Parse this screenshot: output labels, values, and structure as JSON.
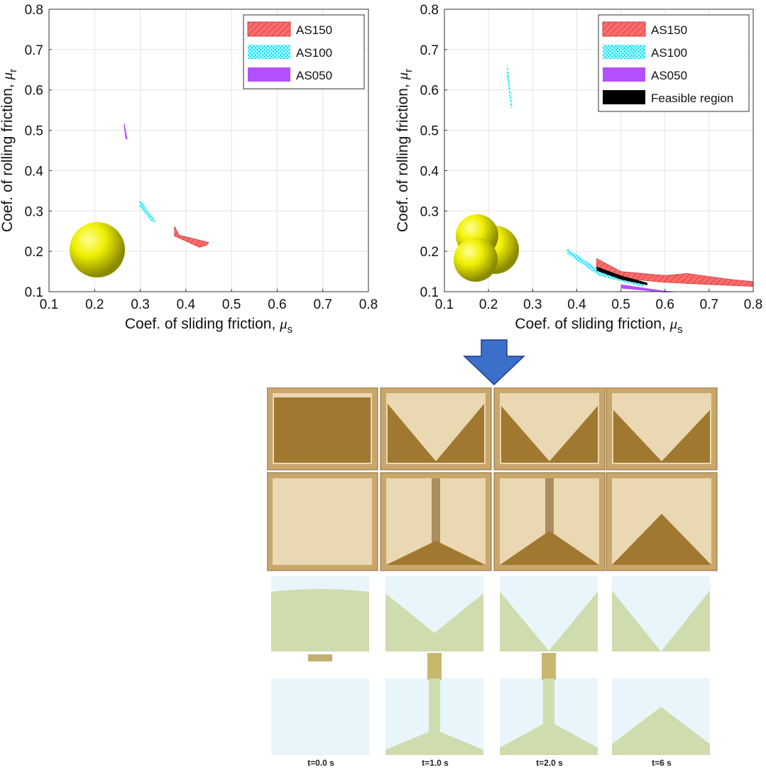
{
  "chart_data": [
    {
      "type": "area",
      "title": "",
      "xlabel": "Coef. of sliding friction, ",
      "xlabel_symbol": "μ",
      "xlabel_sub": "s",
      "ylabel": "Coef. of rolling friction, ",
      "ylabel_symbol": "μ",
      "ylabel_sub": "r",
      "xlim": [
        0.1,
        0.8
      ],
      "ylim": [
        0.1,
        0.8
      ],
      "xticks": [
        "0.1",
        "0.2",
        "0.3",
        "0.4",
        "0.5",
        "0.6",
        "0.7",
        "0.8"
      ],
      "yticks": [
        "0.1",
        "0.2",
        "0.3",
        "0.4",
        "0.5",
        "0.6",
        "0.7",
        "0.8"
      ],
      "grid": true,
      "legend_position": "top-right",
      "particle_shape": "single sphere",
      "series": [
        {
          "name": "AS150",
          "color": "#ff6b6b",
          "hatch": "diagonal",
          "region": [
            [
              0.375,
              0.262
            ],
            [
              0.385,
              0.24
            ],
            [
              0.45,
              0.222
            ],
            [
              0.445,
              0.215
            ],
            [
              0.43,
              0.21
            ],
            [
              0.375,
              0.238
            ]
          ]
        },
        {
          "name": "AS100",
          "color": "#00e5ff",
          "hatch": "cross",
          "region": [
            [
              0.298,
              0.33
            ],
            [
              0.335,
              0.272
            ],
            [
              0.325,
              0.274
            ],
            [
              0.298,
              0.31
            ]
          ]
        },
        {
          "name": "AS050",
          "color": "#b44fff",
          "hatch": "none",
          "region": [
            [
              0.265,
              0.52
            ],
            [
              0.272,
              0.478
            ],
            [
              0.268,
              0.478
            ],
            [
              0.264,
              0.51
            ]
          ]
        }
      ]
    },
    {
      "type": "area",
      "title": "",
      "xlabel": "Coef. of sliding friction, ",
      "xlabel_symbol": "μ",
      "xlabel_sub": "s",
      "ylabel": "Coef. of rolling friction, ",
      "ylabel_symbol": "μ",
      "ylabel_sub": "r",
      "xlim": [
        0.1,
        0.8
      ],
      "ylim": [
        0.1,
        0.8
      ],
      "xticks": [
        "0.1",
        "0.2",
        "0.3",
        "0.4",
        "0.5",
        "0.6",
        "0.7",
        "0.8"
      ],
      "yticks": [
        "0.1",
        "0.2",
        "0.3",
        "0.4",
        "0.5",
        "0.6",
        "0.7",
        "0.8"
      ],
      "grid": true,
      "legend_position": "top-right",
      "particle_shape": "three-sphere clump",
      "series": [
        {
          "name": "AS150",
          "color": "#ff6b6b",
          "hatch": "diagonal",
          "region": [
            [
              0.445,
              0.182
            ],
            [
              0.5,
              0.15
            ],
            [
              0.6,
              0.14
            ],
            [
              0.65,
              0.145
            ],
            [
              0.75,
              0.13
            ],
            [
              0.8,
              0.125
            ],
            [
              0.8,
              0.113
            ],
            [
              0.7,
              0.118
            ],
            [
              0.6,
              0.123
            ],
            [
              0.5,
              0.133
            ],
            [
              0.445,
              0.15
            ]
          ]
        },
        {
          "name": "AS100",
          "color": "#00e5ff",
          "hatch": "cross",
          "region": [
            [
              0.378,
              0.207
            ],
            [
              0.45,
              0.155
            ],
            [
              0.55,
              0.12
            ],
            [
              0.55,
              0.112
            ],
            [
              0.45,
              0.14
            ],
            [
              0.378,
              0.195
            ]
          ],
          "region2": [
            [
              0.243,
              0.665
            ],
            [
              0.254,
              0.555
            ],
            [
              0.251,
              0.555
            ],
            [
              0.241,
              0.64
            ]
          ]
        },
        {
          "name": "AS050",
          "color": "#b44fff",
          "hatch": "none",
          "region": [
            [
              0.5,
              0.118
            ],
            [
              0.6,
              0.102
            ],
            [
              0.64,
              0.1
            ],
            [
              0.6,
              0.098
            ],
            [
              0.5,
              0.108
            ]
          ]
        },
        {
          "name": "Feasible region",
          "color": "#000000",
          "hatch": "none",
          "region": [
            [
              0.445,
              0.162
            ],
            [
              0.5,
              0.14
            ],
            [
              0.56,
              0.122
            ],
            [
              0.56,
              0.116
            ],
            [
              0.5,
              0.13
            ],
            [
              0.445,
              0.152
            ]
          ]
        }
      ]
    }
  ],
  "sequence": {
    "time_labels": [
      "t=0.0 s",
      "t=1.0 s",
      "t=2.0 s",
      "t=6 s"
    ]
  },
  "colors": {
    "sphere": "#e6e600",
    "arrow": "#3b6fc9",
    "wood": "#d8bb86",
    "sand": "#a0782f",
    "sim_bg": "#e8f6fb",
    "sim_particles": "#cfdcae"
  }
}
